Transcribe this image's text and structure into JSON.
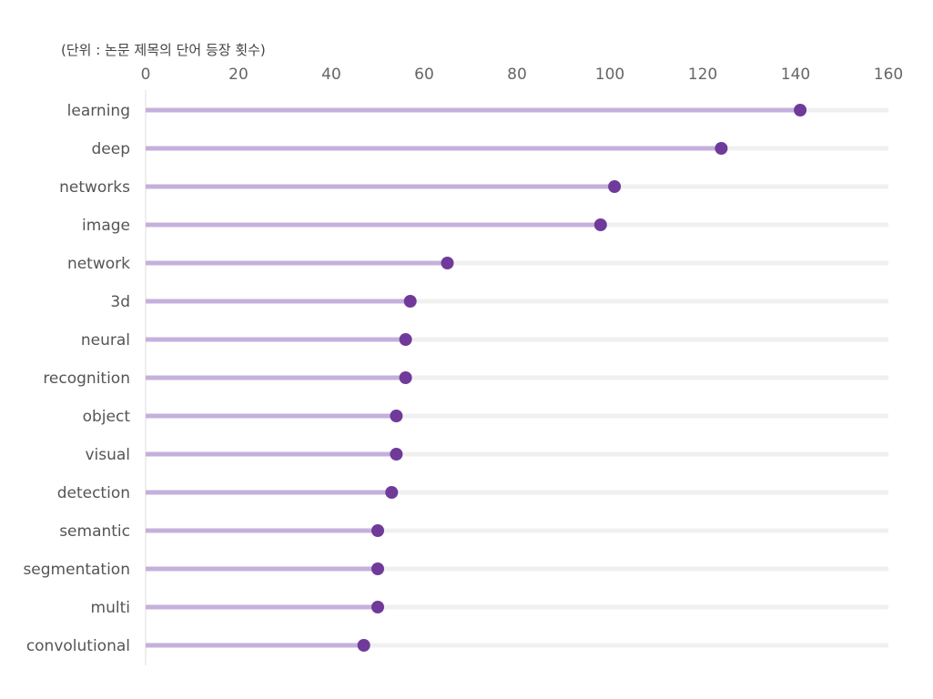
{
  "chart_data": {
    "type": "lollipop",
    "orientation": "horizontal",
    "unit_label": "(단위 : 논문 제목의 단어 등장 횟수)",
    "xlim": [
      0,
      160
    ],
    "x_ticks": [
      "0",
      "20",
      "40",
      "60",
      "80",
      "100",
      "120",
      "140",
      "160"
    ],
    "axis_position": "top",
    "grid": false,
    "legend": "none",
    "categories": [
      "learning",
      "deep",
      "networks",
      "image",
      "network",
      "3d",
      "neural",
      "recognition",
      "object",
      "visual",
      "detection",
      "semantic",
      "segmentation",
      "multi",
      "convolutional"
    ],
    "values": [
      141,
      124,
      101,
      98,
      65,
      57,
      56,
      56,
      54,
      54,
      53,
      50,
      50,
      50,
      47
    ],
    "colors": {
      "stem": "#c5b0dc",
      "dot": "#6f3a9a",
      "track": "#f0f0f0",
      "axis": "#dddddd"
    }
  }
}
